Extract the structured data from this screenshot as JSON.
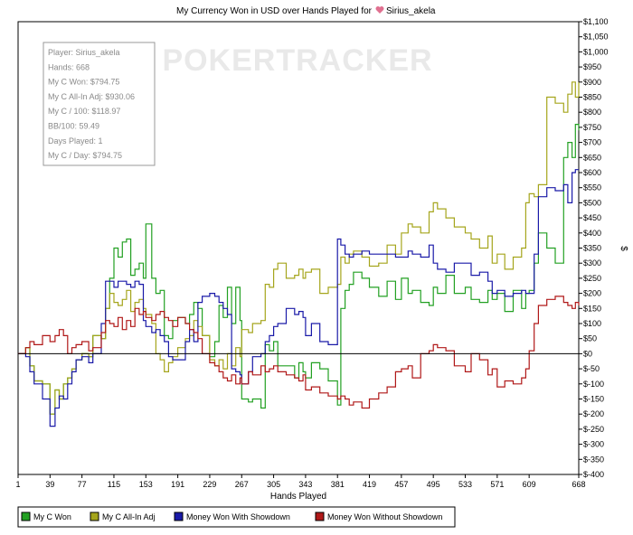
{
  "chart_data": {
    "type": "line",
    "title": "My Currency Won in USD over Hands Played for",
    "player_name": "Sirius_akela",
    "watermark": "POKERTRACKER",
    "xlabel": "Hands Played",
    "ylabel": "$",
    "xlim": [
      1,
      668
    ],
    "ylim": [
      -400,
      1100
    ],
    "x_ticks": [
      "1",
      "39",
      "77",
      "115",
      "153",
      "191",
      "229",
      "267",
      "305",
      "343",
      "381",
      "419",
      "457",
      "495",
      "533",
      "571",
      "609",
      "668"
    ],
    "x_tick_values": [
      1,
      39,
      77,
      115,
      153,
      191,
      229,
      267,
      305,
      343,
      381,
      419,
      457,
      495,
      533,
      571,
      609,
      668
    ],
    "y_ticks": [
      "$1,100",
      "$1,050",
      "$1,000",
      "$950",
      "$900",
      "$850",
      "$800",
      "$750",
      "$700",
      "$650",
      "$600",
      "$550",
      "$500",
      "$450",
      "$400",
      "$350",
      "$300",
      "$250",
      "$200",
      "$150",
      "$100",
      "$50",
      "$0",
      "$-50",
      "$-100",
      "$-150",
      "$-200",
      "$-250",
      "$-300",
      "$-350",
      "$-400"
    ],
    "y_tick_values": [
      1100,
      1050,
      1000,
      950,
      900,
      850,
      800,
      750,
      700,
      650,
      600,
      550,
      500,
      450,
      400,
      350,
      300,
      250,
      200,
      150,
      100,
      50,
      0,
      -50,
      -100,
      -150,
      -200,
      -250,
      -300,
      -350,
      -400
    ],
    "grid": false,
    "legend_placement": "bottom",
    "series": [
      {
        "name": "My C Won",
        "color": "#22a022",
        "x": [
          1,
          10,
          15,
          20,
          30,
          39,
          45,
          50,
          55,
          60,
          65,
          70,
          77,
          85,
          90,
          100,
          105,
          110,
          115,
          120,
          125,
          130,
          135,
          140,
          145,
          150,
          153,
          160,
          165,
          170,
          175,
          180,
          185,
          191,
          200,
          205,
          210,
          215,
          220,
          229,
          235,
          240,
          245,
          250,
          255,
          260,
          265,
          267,
          275,
          280,
          290,
          295,
          300,
          305,
          310,
          320,
          330,
          335,
          340,
          343,
          350,
          360,
          370,
          381,
          385,
          390,
          395,
          400,
          410,
          419,
          430,
          440,
          450,
          457,
          465,
          470,
          480,
          490,
          495,
          500,
          510,
          520,
          533,
          540,
          550,
          560,
          565,
          571,
          580,
          590,
          600,
          605,
          609,
          615,
          620,
          630,
          640,
          650,
          655,
          660,
          664,
          668
        ],
        "y": [
          0,
          20,
          -40,
          -90,
          -100,
          -200,
          -120,
          -150,
          -100,
          -80,
          -50,
          -20,
          0,
          -10,
          60,
          50,
          150,
          250,
          350,
          320,
          370,
          380,
          260,
          280,
          300,
          250,
          430,
          250,
          200,
          210,
          60,
          50,
          110,
          120,
          100,
          130,
          170,
          150,
          60,
          -10,
          40,
          160,
          120,
          220,
          100,
          220,
          110,
          -150,
          -160,
          -150,
          -180,
          30,
          10,
          40,
          -40,
          -40,
          -80,
          -30,
          -60,
          -80,
          -30,
          -50,
          -90,
          -170,
          150,
          210,
          230,
          270,
          250,
          220,
          190,
          240,
          180,
          250,
          200,
          210,
          170,
          160,
          220,
          200,
          260,
          200,
          220,
          180,
          170,
          210,
          180,
          200,
          140,
          210,
          150,
          200,
          210,
          300,
          400,
          350,
          300,
          650,
          700,
          650,
          760,
          740
        ]
      },
      {
        "name": "My C All-In Adj",
        "color": "#a5a51c",
        "x": [
          1,
          10,
          15,
          20,
          30,
          39,
          45,
          50,
          55,
          60,
          65,
          70,
          77,
          85,
          90,
          100,
          105,
          110,
          115,
          120,
          125,
          130,
          135,
          140,
          145,
          150,
          153,
          160,
          165,
          170,
          175,
          180,
          185,
          191,
          200,
          205,
          210,
          215,
          220,
          229,
          235,
          240,
          245,
          250,
          255,
          260,
          265,
          267,
          275,
          280,
          290,
          295,
          300,
          305,
          310,
          320,
          330,
          335,
          340,
          343,
          350,
          360,
          370,
          381,
          385,
          390,
          395,
          400,
          410,
          419,
          430,
          440,
          450,
          457,
          465,
          470,
          480,
          490,
          495,
          500,
          510,
          520,
          533,
          540,
          550,
          560,
          565,
          571,
          580,
          590,
          600,
          605,
          609,
          615,
          620,
          630,
          640,
          650,
          655,
          660,
          664,
          668
        ],
        "y": [
          0,
          20,
          -40,
          -90,
          -100,
          -200,
          -120,
          -150,
          -100,
          -80,
          -50,
          -20,
          0,
          -10,
          60,
          50,
          150,
          200,
          170,
          160,
          180,
          210,
          140,
          170,
          180,
          150,
          130,
          100,
          0,
          -20,
          -60,
          -30,
          -10,
          20,
          50,
          60,
          110,
          90,
          60,
          -20,
          -40,
          -20,
          -50,
          0,
          -40,
          20,
          -10,
          80,
          70,
          100,
          110,
          230,
          220,
          280,
          300,
          250,
          260,
          280,
          250,
          270,
          280,
          200,
          220,
          230,
          320,
          300,
          330,
          340,
          320,
          290,
          300,
          360,
          330,
          400,
          430,
          420,
          400,
          470,
          500,
          480,
          450,
          420,
          400,
          380,
          350,
          390,
          300,
          330,
          280,
          320,
          350,
          500,
          530,
          520,
          560,
          850,
          830,
          800,
          860,
          900,
          850,
          900
        ]
      },
      {
        "name": "Money Won With Showdown",
        "color": "#1a1aa8",
        "x": [
          1,
          10,
          15,
          20,
          30,
          39,
          45,
          50,
          55,
          60,
          65,
          70,
          77,
          85,
          90,
          100,
          105,
          110,
          115,
          120,
          125,
          130,
          135,
          140,
          145,
          150,
          153,
          160,
          165,
          170,
          175,
          180,
          185,
          191,
          200,
          205,
          210,
          215,
          220,
          229,
          235,
          240,
          245,
          250,
          255,
          260,
          265,
          267,
          275,
          280,
          290,
          295,
          300,
          305,
          310,
          320,
          330,
          335,
          340,
          343,
          350,
          360,
          370,
          381,
          385,
          390,
          395,
          400,
          410,
          419,
          430,
          440,
          450,
          457,
          465,
          470,
          480,
          490,
          495,
          500,
          510,
          520,
          533,
          540,
          550,
          560,
          565,
          571,
          580,
          590,
          600,
          605,
          609,
          615,
          620,
          630,
          640,
          650,
          655,
          660,
          664,
          668
        ],
        "y": [
          0,
          -10,
          -60,
          -100,
          -150,
          -240,
          -180,
          -140,
          -150,
          -100,
          -60,
          -20,
          -10,
          -30,
          0,
          100,
          240,
          240,
          220,
          240,
          240,
          230,
          220,
          240,
          230,
          110,
          90,
          70,
          80,
          60,
          40,
          -10,
          -20,
          -20,
          40,
          80,
          40,
          170,
          190,
          200,
          190,
          170,
          150,
          130,
          -50,
          -60,
          -70,
          -100,
          -60,
          -10,
          0,
          40,
          60,
          90,
          100,
          150,
          130,
          140,
          120,
          60,
          100,
          40,
          30,
          380,
          360,
          330,
          320,
          330,
          340,
          330,
          330,
          330,
          320,
          320,
          340,
          330,
          320,
          360,
          300,
          280,
          270,
          300,
          300,
          260,
          270,
          240,
          200,
          210,
          190,
          200,
          210,
          200,
          200,
          330,
          520,
          550,
          540,
          560,
          500,
          600,
          610,
          610
        ]
      },
      {
        "name": "Money Won Without Showdown",
        "color": "#b01818",
        "x": [
          1,
          10,
          15,
          20,
          30,
          39,
          45,
          50,
          55,
          60,
          65,
          70,
          77,
          85,
          90,
          100,
          105,
          110,
          115,
          120,
          125,
          130,
          135,
          140,
          145,
          150,
          153,
          160,
          165,
          170,
          175,
          180,
          185,
          191,
          200,
          205,
          210,
          215,
          220,
          229,
          235,
          240,
          245,
          250,
          255,
          260,
          265,
          267,
          275,
          280,
          290,
          295,
          300,
          305,
          310,
          320,
          330,
          335,
          340,
          343,
          350,
          360,
          370,
          381,
          385,
          390,
          395,
          400,
          410,
          419,
          430,
          440,
          450,
          457,
          465,
          470,
          480,
          490,
          495,
          500,
          510,
          520,
          533,
          540,
          550,
          560,
          565,
          571,
          580,
          590,
          600,
          605,
          609,
          615,
          620,
          630,
          640,
          650,
          655,
          660,
          664,
          668
        ],
        "y": [
          0,
          20,
          40,
          30,
          60,
          40,
          60,
          80,
          60,
          0,
          20,
          30,
          40,
          10,
          20,
          70,
          110,
          100,
          90,
          120,
          80,
          110,
          90,
          150,
          130,
          140,
          120,
          110,
          130,
          140,
          120,
          110,
          90,
          120,
          100,
          80,
          70,
          50,
          0,
          -30,
          -40,
          -60,
          -80,
          -90,
          -70,
          -100,
          -80,
          -100,
          -60,
          -70,
          -40,
          -60,
          -50,
          -40,
          -60,
          -70,
          -80,
          -90,
          -70,
          -120,
          -110,
          -130,
          -140,
          -150,
          -140,
          -150,
          -170,
          -160,
          -180,
          -150,
          -130,
          -110,
          -60,
          -50,
          -40,
          -80,
          0,
          10,
          30,
          20,
          10,
          -40,
          -60,
          0,
          -20,
          -70,
          -50,
          -110,
          -90,
          -100,
          -80,
          -50,
          10,
          100,
          160,
          180,
          190,
          170,
          160,
          150,
          170,
          160
        ]
      }
    ],
    "stats": [
      "Player: Sirius_akela",
      "Hands: 668",
      "My C Won: $794.75",
      "My C All-In Adj: $930.06",
      "My C / 100: $118.97",
      "BB/100: 59.49",
      "Days Played: 1",
      "My C / Day: $794.75"
    ]
  }
}
